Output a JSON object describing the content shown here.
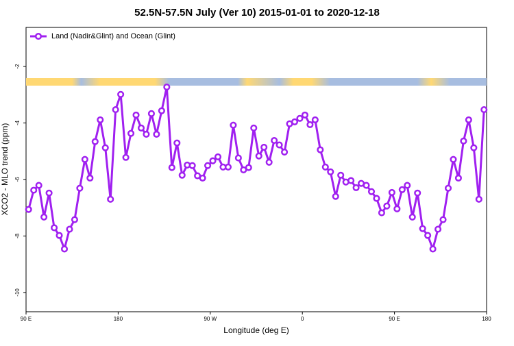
{
  "chart_data": {
    "type": "line",
    "title": "52.5N-57.5N July (Ver 10)   2015-01-01 to 2020-12-18",
    "xlabel": "Longitude (deg E)",
    "ylabel": "XCO2 - MLO trend (ppm)",
    "legend": "top-left",
    "xlim": [
      90,
      540
    ],
    "ylim": [
      -10.68,
      -0.62
    ],
    "xticks": [
      {
        "value": 90,
        "label": "90 E"
      },
      180,
      {
        "value": 270,
        "label": "90 W"
      },
      {
        "value": 360,
        "label": "0"
      },
      {
        "value": 450,
        "label": "90 E"
      },
      {
        "value": 540,
        "label": "180"
      }
    ],
    "yticks": [
      -10,
      -8,
      -6,
      -4,
      -2
    ],
    "series": [
      {
        "name": "Land (Nadir&Glint) and Ocean (Glint)",
        "color": "#a020f0",
        "x": [
          92.5,
          97.5,
          102.5,
          107.5,
          112.5,
          117.5,
          122.5,
          127.5,
          132.5,
          137.5,
          142.5,
          147.5,
          152.5,
          157.5,
          162.5,
          167.5,
          172.5,
          177.5,
          182.5,
          187.5,
          192.5,
          197.5,
          202.5,
          207.5,
          212.5,
          217.5,
          222.5,
          227.5,
          232.5,
          237.5,
          242.5,
          247.5,
          252.5,
          257.5,
          262.5,
          267.5,
          272.5,
          277.5,
          282.5,
          287.5,
          292.5,
          297.5,
          302.5,
          307.5,
          312.5,
          317.5,
          322.5,
          327.5,
          332.5,
          337.5,
          342.5,
          347.5,
          352.5,
          357.5,
          362.5,
          367.5,
          372.5,
          377.5,
          382.5,
          387.5,
          392.5,
          397.5,
          402.5,
          407.5,
          412.5,
          417.5,
          422.5,
          427.5,
          432.5,
          437.5,
          442.5,
          447.5,
          452.5,
          457.5,
          462.5,
          467.5,
          472.5,
          477.5,
          482.5,
          487.5,
          492.5,
          497.5,
          502.5,
          507.5,
          512.5,
          517.5,
          522.5,
          527.5,
          532.5,
          537.5
        ],
        "values": [
          -7.06,
          -6.38,
          -6.21,
          -7.33,
          -6.48,
          -7.71,
          -7.98,
          -8.46,
          -7.76,
          -7.42,
          -6.31,
          -5.29,
          -5.95,
          -4.66,
          -3.89,
          -4.88,
          -6.7,
          -3.53,
          -2.99,
          -5.22,
          -4.37,
          -3.72,
          -4.18,
          -4.4,
          -3.67,
          -4.4,
          -3.57,
          -2.73,
          -5.58,
          -4.71,
          -5.85,
          -5.49,
          -5.51,
          -5.87,
          -5.95,
          -5.51,
          -5.34,
          -5.2,
          -5.56,
          -5.56,
          -4.08,
          -5.24,
          -5.66,
          -5.58,
          -4.18,
          -5.17,
          -4.86,
          -5.39,
          -4.62,
          -4.78,
          -5.03,
          -4.03,
          -3.96,
          -3.84,
          -3.72,
          -4.06,
          -3.89,
          -4.95,
          -5.56,
          -5.73,
          -6.6,
          -5.85,
          -6.09,
          -6.04,
          -6.29,
          -6.14,
          -6.21,
          -6.43,
          -6.67,
          -7.18,
          -6.94,
          -6.46,
          -7.04,
          -6.36,
          -6.21,
          -7.33,
          -6.48,
          -7.74,
          -7.98,
          -8.46,
          -7.76,
          -7.42,
          -6.31,
          -5.29,
          -5.95,
          -4.64,
          -3.89,
          -4.88,
          -6.7,
          -3.53
        ]
      }
    ]
  }
}
